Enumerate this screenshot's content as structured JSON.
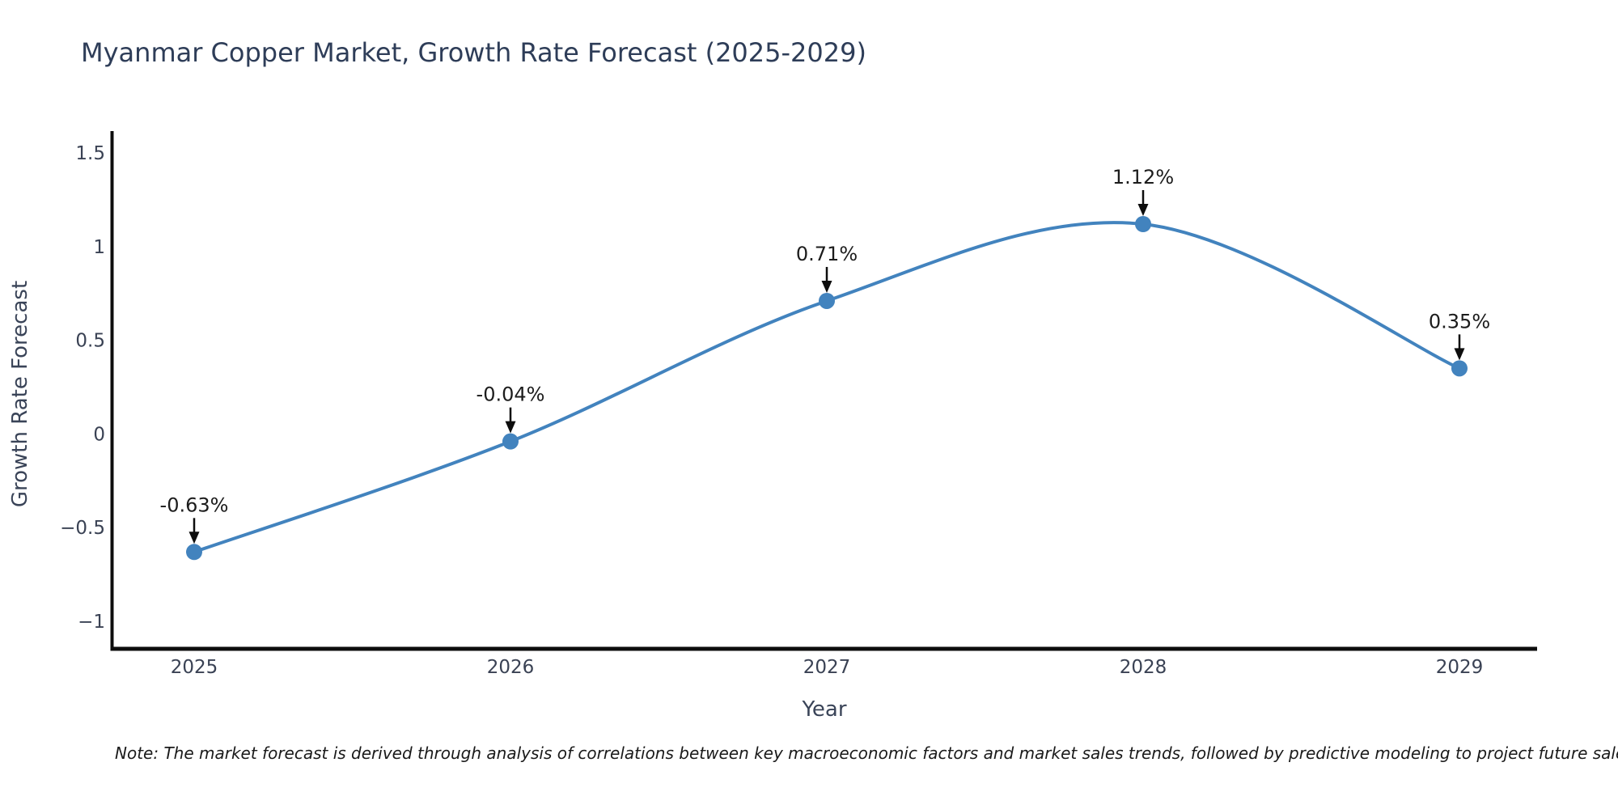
{
  "title": "Myanmar Copper Market, Growth Rate Forecast (2025-2029)",
  "note": "Note: The market forecast is derived through analysis of correlations between key macroeconomic factors and market sales trends, followed by predictive modeling to project future sales.",
  "chart_data": {
    "type": "line",
    "title": "Myanmar Copper Market, Growth Rate Forecast (2025-2029)",
    "xlabel": "Year",
    "ylabel": "Growth Rate Forecast",
    "categories": [
      "2025",
      "2026",
      "2027",
      "2028",
      "2029"
    ],
    "values": [
      -0.63,
      -0.04,
      0.71,
      1.12,
      0.35
    ],
    "point_labels": [
      "-0.63%",
      "-0.04%",
      "0.71%",
      "1.12%",
      "0.35%"
    ],
    "yticks": [
      1.5,
      1,
      0.5,
      0,
      -0.5,
      -1
    ],
    "ytick_labels": [
      "1.5",
      "1",
      "0.5",
      "0",
      "−0.5",
      "−1"
    ],
    "ylim": [
      -1.14,
      1.62
    ],
    "grid": false,
    "legend": "none",
    "smooth": true,
    "line_color": "#4283be",
    "marker_color": "#4283be",
    "annotation_arrow_color": "#0d0d0d",
    "axis_color": "#0d0d0d"
  }
}
